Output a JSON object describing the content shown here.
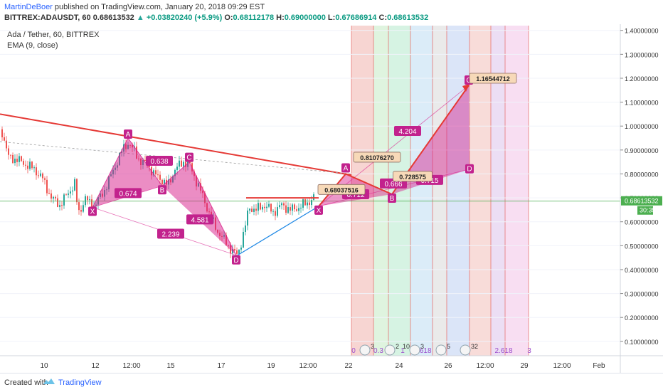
{
  "header": {
    "author": "MartinDeBoer",
    "published_text": "published on TradingView.com, January 20, 2018 09:29 EST",
    "symbol": "BITTREX:ADAUSDT, 60",
    "last": "0.68613532",
    "change": "+0.03820240 (+5.9%)",
    "open_label": "O:",
    "open": "0.68112178",
    "high_label": "H:",
    "high": "0.69000000",
    "low_label": "L:",
    "low": "0.67686914",
    "close_label": "C:",
    "close": "0.68613532"
  },
  "legend": {
    "title": "Ada / Tether, 60, BITTREX",
    "indicator": "EMA (9, close)"
  },
  "footer": {
    "created_with": "Created with",
    "brand": "TradingView"
  },
  "colors": {
    "candle_up": "#26a69a",
    "candle_down": "#ef5350",
    "pattern_fill": "#d81b8a",
    "trend_line": "#e53935",
    "price_line": "#4caf50",
    "support_line": "#1e88e5"
  },
  "chart_data": {
    "type": "line",
    "title": "Ada / Tether, 60, BITTREX",
    "xlabel": "",
    "ylabel": "",
    "ylim": [
      0.04,
      1.42
    ],
    "y_ticks": [
      "1.40000000",
      "1.30000000",
      "1.20000000",
      "1.10000000",
      "1.00000000",
      "0.90000000",
      "0.80000000",
      "0.70000000",
      "0.60000000",
      "0.50000000",
      "0.40000000",
      "0.30000000",
      "0.20000000",
      "0.10000000"
    ],
    "x_ticks": [
      "10",
      "12",
      "12:00",
      "15",
      "17",
      "19",
      "12:00",
      "22",
      "24",
      "26",
      "12:00",
      "29",
      "12:00",
      "Feb"
    ],
    "current_price": "0.68613532",
    "countdown": "30:35",
    "price_path": [
      [
        0,
        1.01
      ],
      [
        12,
        0.87
      ],
      [
        24,
        0.86
      ],
      [
        36,
        0.84
      ],
      [
        48,
        0.82
      ],
      [
        60,
        0.78
      ],
      [
        72,
        0.7
      ],
      [
        84,
        0.67
      ],
      [
        96,
        0.72
      ],
      [
        105,
        0.76
      ],
      [
        110,
        0.63
      ],
      [
        120,
        0.7
      ],
      [
        130,
        0.66
      ],
      [
        145,
        0.72
      ],
      [
        160,
        0.82
      ],
      [
        172,
        0.9
      ],
      [
        180,
        0.93
      ],
      [
        188,
        0.9
      ],
      [
        198,
        0.85
      ],
      [
        208,
        0.84
      ],
      [
        216,
        0.8
      ],
      [
        226,
        0.78
      ],
      [
        236,
        0.75
      ],
      [
        246,
        0.82
      ],
      [
        258,
        0.85
      ],
      [
        266,
        0.84
      ],
      [
        276,
        0.77
      ],
      [
        286,
        0.7
      ],
      [
        296,
        0.62
      ],
      [
        306,
        0.56
      ],
      [
        316,
        0.52
      ],
      [
        326,
        0.48
      ],
      [
        334,
        0.46
      ],
      [
        344,
        0.57
      ],
      [
        350,
        0.66
      ],
      [
        360,
        0.65
      ],
      [
        372,
        0.67
      ],
      [
        384,
        0.64
      ],
      [
        396,
        0.67
      ],
      [
        408,
        0.65
      ],
      [
        420,
        0.66
      ],
      [
        432,
        0.68
      ],
      [
        442,
        0.7
      ]
    ],
    "harmonic_1": {
      "points": [
        {
          "label": "X",
          "x": 130,
          "y": 0.66
        },
        {
          "label": "A",
          "x": 180,
          "y": 0.95
        },
        {
          "label": "B",
          "x": 228,
          "y": 0.75
        },
        {
          "label": "C",
          "x": 266,
          "y": 0.85
        },
        {
          "label": "D",
          "x": 332,
          "y": 0.46
        }
      ],
      "ratios": [
        {
          "text": "0.674",
          "x": 180,
          "y": 0.72
        },
        {
          "text": "0.638",
          "x": 224,
          "y": 0.855
        },
        {
          "text": "4.581",
          "x": 281,
          "y": 0.61
        },
        {
          "text": "2.239",
          "x": 240,
          "y": 0.55
        }
      ]
    },
    "harmonic_2": {
      "points": [
        {
          "label": "X",
          "x": 448,
          "y": 0.665
        },
        {
          "label": "A",
          "x": 486,
          "y": 0.8
        },
        {
          "label": "B",
          "x": 551,
          "y": 0.715
        },
        {
          "label": "C",
          "x": 659,
          "y": 1.17
        },
        {
          "label": "D",
          "x": 660,
          "y": 0.82
        }
      ],
      "ratios": [
        {
          "text": "0.712",
          "x": 500,
          "y": 0.715
        },
        {
          "text": "0.666",
          "x": 553,
          "y": 0.76
        },
        {
          "text": "0.715",
          "x": 604,
          "y": 0.775
        },
        {
          "text": "4.204",
          "x": 573,
          "y": 0.98
        }
      ],
      "price_labels": [
        {
          "text": "0.81076270",
          "x": 530,
          "y": 0.87
        },
        {
          "text": "0.68037516",
          "x": 480,
          "y": 0.735
        },
        {
          "text": "0.728575",
          "x": 580,
          "y": 0.79
        },
        {
          "text": "1.16544712",
          "x": 693,
          "y": 1.2
        }
      ]
    },
    "fib_time_labels": [
      "0",
      "0.3",
      "1",
      "1.618",
      "2",
      "2.618",
      "3"
    ],
    "event_counts": [
      "3",
      "2",
      "3",
      "5",
      "32",
      "10"
    ]
  }
}
